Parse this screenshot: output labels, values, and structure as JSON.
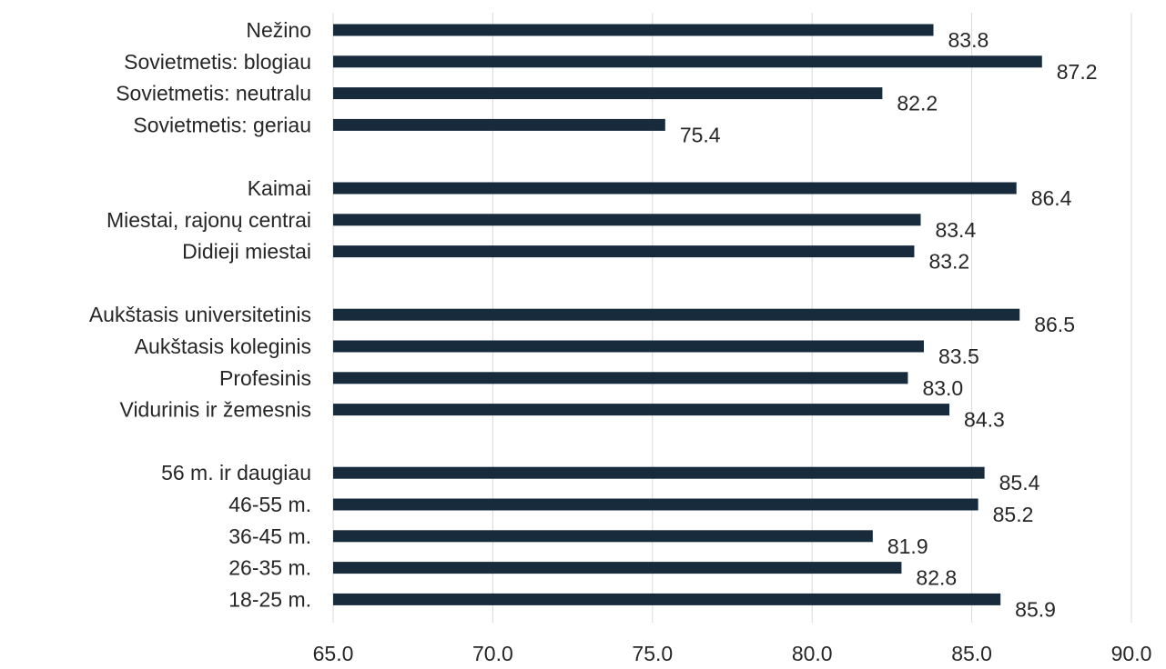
{
  "chart_data": {
    "type": "bar",
    "orientation": "horizontal",
    "categories": [
      "Nežino",
      "Sovietmetis: blogiau",
      "Sovietmetis: neutralu",
      "Sovietmetis: geriau",
      "Kaimai",
      "Miestai, rajonų centrai",
      "Didieji miestai",
      "Aukštasis universitetinis",
      "Aukštasis koleginis",
      "Profesinis",
      "Vidurinis ir žemesnis",
      "56 m. ir daugiau",
      "46-55 m.",
      "36-45 m.",
      "26-35 m.",
      "18-25 m."
    ],
    "value_labels": [
      "83.8",
      "87.2",
      "82.2",
      "75.4",
      "86.4",
      "83.4",
      "83.2",
      "86.5",
      "83.5",
      "83.0",
      "84.3",
      "85.4",
      "85.2",
      "81.9",
      "82.8",
      "85.9"
    ],
    "values": [
      83.8,
      87.2,
      82.2,
      75.4,
      86.4,
      83.4,
      83.2,
      86.5,
      83.5,
      83.0,
      84.3,
      85.4,
      85.2,
      81.9,
      82.8,
      85.9
    ],
    "groups": [
      [
        "Nežino",
        "Sovietmetis: blogiau",
        "Sovietmetis: neutralu",
        "Sovietmetis: geriau"
      ],
      [
        "Kaimai",
        "Miestai, rajonų centrai",
        "Didieji miestai"
      ],
      [
        "Aukštasis universitetinis",
        "Aukštasis koleginis",
        "Profesinis",
        "Vidurinis ir žemesnis"
      ],
      [
        "56 m. ir daugiau",
        "46-55 m.",
        "36-45 m.",
        "26-35 m.",
        "18-25 m."
      ]
    ],
    "xlim": [
      65.0,
      90.0
    ],
    "x_ticks": [
      "65.0",
      "70.0",
      "75.0",
      "80.0",
      "85.0",
      "90.0"
    ],
    "tick_values": [
      65,
      70,
      75,
      80,
      85,
      90
    ],
    "grid": true,
    "title": "",
    "xlabel": "",
    "ylabel": "",
    "bar_color": "#172b3c",
    "grid_color": "#d9d9d9"
  }
}
